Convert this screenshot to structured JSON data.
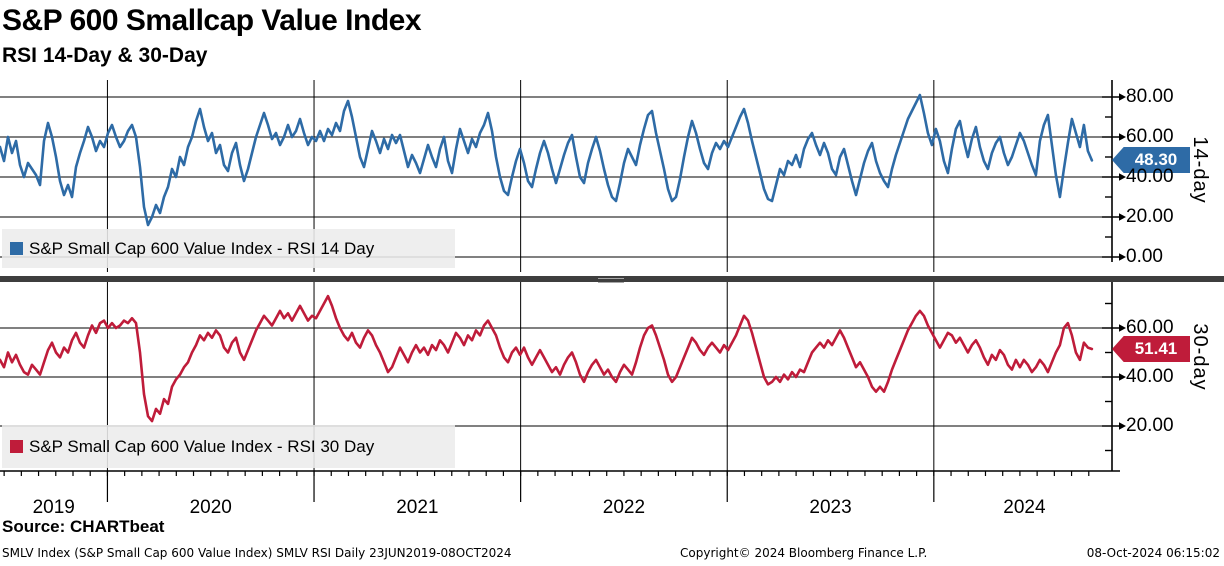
{
  "header": {
    "title": "S&P 600 Smallcap Value Index",
    "subtitle": "RSI 14-Day & 30-Day"
  },
  "colors": {
    "rsi14": "#2e6ba6",
    "rsi14_badge_border": "#17365e",
    "rsi30": "#bf1c3a",
    "rsi30_badge_border": "#5c0d1d",
    "axis": "#000000",
    "splitter": "#3e3e3e",
    "legend_bg": "#ececec"
  },
  "panels": [
    {
      "id": "rsi14",
      "axis_label": "14-day",
      "legend_label": "S&P Small Cap 600 Value Index - RSI 14 Day",
      "last_value_label": "48.30",
      "color": "#2e6ba6",
      "y_ticks": [
        {
          "value": 80,
          "label": "80.00"
        },
        {
          "value": 60,
          "label": "60.00"
        },
        {
          "value": 40,
          "label": "40.00"
        },
        {
          "value": 20,
          "label": "20.00"
        },
        {
          "value": 0,
          "label": "0.00"
        }
      ],
      "y_minor_ticks": [
        90,
        70,
        50,
        30,
        10
      ]
    },
    {
      "id": "rsi30",
      "axis_label": "30-day",
      "legend_label": "S&P Small Cap 600 Value Index - RSI 30 Day",
      "last_value_label": "51.41",
      "color": "#bf1c3a",
      "y_ticks": [
        {
          "value": 60,
          "label": "60.00"
        },
        {
          "value": 40,
          "label": "40.00"
        },
        {
          "value": 20,
          "label": "20.00"
        }
      ],
      "y_minor_ticks": [
        70,
        50,
        30,
        10
      ]
    }
  ],
  "x_axis": {
    "year_labels": [
      "2019",
      "2020",
      "2021",
      "2022",
      "2023",
      "2024"
    ],
    "year_boundaries": [
      2020,
      2021,
      2022,
      2023,
      2024
    ]
  },
  "source_line": "Source: CHARTbeat",
  "footer": {
    "left": "SMLV Index (S&P Small Cap 600 Value Index) SMLV RSI  Daily 23JUN2019-08OCT2024",
    "center": "Copyright© 2024 Bloomberg Finance L.P.",
    "right": "08-Oct-2024 06:15:02"
  },
  "chart_data": [
    {
      "type": "line",
      "name": "S&P Small Cap 600 Value Index - RSI 14 Day",
      "panel": 0,
      "color": "#2e6ba6",
      "x_range_label": "23JUN2019-08OCT2024",
      "x_start_year": 2019.48,
      "x_step_years": 0.01936,
      "ylim": [
        0,
        90
      ],
      "y_gridlines": [
        80,
        60,
        40,
        20,
        0
      ],
      "last_value": 48.3,
      "values": [
        55,
        48,
        60,
        52,
        58,
        46,
        40,
        47,
        44,
        41,
        36,
        58,
        67,
        60,
        50,
        38,
        31,
        36,
        30,
        45,
        52,
        58,
        65,
        60,
        53,
        58,
        55,
        62,
        66,
        60,
        55,
        58,
        63,
        66,
        60,
        45,
        25,
        16,
        20,
        26,
        22,
        30,
        35,
        44,
        40,
        50,
        46,
        55,
        60,
        68,
        74,
        65,
        58,
        62,
        52,
        56,
        46,
        43,
        52,
        57,
        46,
        38,
        44,
        52,
        60,
        66,
        72,
        66,
        59,
        62,
        56,
        60,
        66,
        60,
        63,
        69,
        62,
        56,
        60,
        58,
        63,
        58,
        64,
        61,
        67,
        63,
        73,
        78,
        70,
        60,
        50,
        45,
        54,
        63,
        58,
        52,
        59,
        54,
        61,
        57,
        61,
        53,
        45,
        51,
        47,
        42,
        49,
        56,
        50,
        45,
        54,
        60,
        48,
        42,
        54,
        64,
        58,
        52,
        59,
        55,
        62,
        66,
        72,
        63,
        50,
        40,
        33,
        31,
        40,
        48,
        54,
        47,
        38,
        35,
        44,
        52,
        58,
        52,
        44,
        37,
        44,
        51,
        57,
        61,
        50,
        40,
        37,
        47,
        54,
        60,
        53,
        44,
        36,
        30,
        28,
        37,
        47,
        54,
        50,
        46,
        56,
        64,
        71,
        73,
        62,
        53,
        44,
        34,
        28,
        30,
        39,
        50,
        60,
        68,
        62,
        54,
        47,
        44,
        52,
        57,
        54,
        58,
        55,
        60,
        65,
        70,
        74,
        67,
        58,
        50,
        42,
        34,
        29,
        28,
        36,
        44,
        41,
        48,
        46,
        51,
        45,
        54,
        59,
        62,
        56,
        51,
        57,
        52,
        44,
        41,
        50,
        54,
        46,
        38,
        31,
        39,
        47,
        53,
        57,
        48,
        42,
        38,
        35,
        44,
        51,
        57,
        63,
        69,
        73,
        77,
        81,
        72,
        62,
        56,
        64,
        58,
        48,
        42,
        54,
        64,
        68,
        58,
        50,
        59,
        65,
        55,
        48,
        44,
        52,
        57,
        60,
        52,
        46,
        50,
        56,
        62,
        58,
        52,
        46,
        41,
        58,
        66,
        71,
        56,
        41,
        30,
        44,
        57,
        69,
        62,
        55,
        66,
        53,
        48.3
      ]
    },
    {
      "type": "line",
      "name": "S&P Small Cap 600 Value Index - RSI 30 Day",
      "panel": 1,
      "color": "#bf1c3a",
      "x_range_label": "23JUN2019-08OCT2024",
      "x_start_year": 2019.48,
      "x_step_years": 0.01936,
      "ylim": [
        0,
        80
      ],
      "y_gridlines": [
        60,
        40,
        20
      ],
      "last_value": 51.41,
      "values": [
        47,
        44,
        50,
        46,
        49,
        45,
        42,
        41,
        45,
        43,
        41,
        46,
        51,
        54,
        50,
        48,
        52,
        50,
        55,
        58,
        54,
        52,
        57,
        61,
        58,
        62,
        63,
        60,
        62,
        60,
        61,
        63,
        62,
        64,
        62,
        50,
        33,
        24,
        22,
        27,
        25,
        31,
        29,
        36,
        39,
        41,
        44,
        46,
        50,
        53,
        57,
        55,
        58,
        56,
        59,
        57,
        52,
        50,
        54,
        56,
        50,
        47,
        51,
        55,
        59,
        62,
        65,
        63,
        61,
        64,
        67,
        64,
        66,
        63,
        66,
        69,
        66,
        63,
        65,
        64,
        67,
        70,
        73,
        69,
        64,
        60,
        57,
        55,
        58,
        54,
        52,
        56,
        59,
        57,
        53,
        50,
        46,
        42,
        44,
        48,
        52,
        49,
        46,
        50,
        53,
        50,
        52,
        49,
        53,
        51,
        55,
        53,
        50,
        54,
        58,
        56,
        53,
        57,
        55,
        59,
        57,
        61,
        63,
        60,
        57,
        52,
        48,
        46,
        50,
        52,
        49,
        52,
        48,
        45,
        48,
        51,
        48,
        45,
        42,
        44,
        41,
        45,
        48,
        50,
        46,
        41,
        38,
        42,
        45,
        47,
        44,
        41,
        43,
        40,
        38,
        42,
        45,
        43,
        41,
        46,
        52,
        57,
        60,
        61,
        57,
        52,
        47,
        41,
        38,
        40,
        44,
        48,
        52,
        56,
        54,
        51,
        49,
        52,
        54,
        52,
        50,
        53,
        51,
        54,
        57,
        61,
        65,
        63,
        58,
        52,
        46,
        40,
        37,
        38,
        40,
        38,
        41,
        39,
        42,
        40,
        43,
        42,
        46,
        50,
        52,
        54,
        52,
        55,
        53,
        56,
        59,
        56,
        52,
        48,
        44,
        46,
        43,
        40,
        36,
        34,
        36,
        34,
        38,
        43,
        47,
        51,
        55,
        59,
        62,
        65,
        67,
        65,
        61,
        58,
        55,
        52,
        55,
        58,
        57,
        54,
        56,
        53,
        50,
        53,
        55,
        52,
        48,
        45,
        49,
        47,
        51,
        49,
        45,
        43,
        47,
        44,
        47,
        45,
        42,
        44,
        47,
        45,
        42,
        46,
        50,
        53,
        60,
        62,
        57,
        50,
        47,
        54,
        52,
        51.41
      ]
    }
  ]
}
